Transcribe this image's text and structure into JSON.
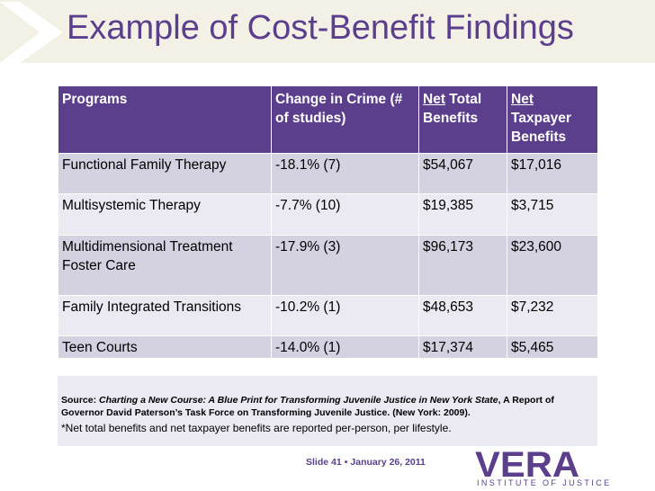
{
  "slide": {
    "title": "Example of Cost-Benefit Findings"
  },
  "table": {
    "headers": {
      "programs": "Programs",
      "change": "Change in Crime (# of studies)",
      "net_total_prefix": "Net",
      "net_total_rest": " Total Benefits",
      "net_taxpayer_prefix": "Net",
      "net_taxpayer_rest": " Taxpayer Benefits"
    },
    "rows": [
      {
        "program": "Functional Family Therapy",
        "change": "-18.1% (7)",
        "net_total": "$54,067",
        "net_taxpayer": "$17,016"
      },
      {
        "program": "Multisystemic Therapy",
        "change": "-7.7% (10)",
        "net_total": "$19,385",
        "net_taxpayer": "$3,715"
      },
      {
        "program": "Multidimensional Treatment Foster Care",
        "change": "-17.9% (3)",
        "net_total": "$96,173",
        "net_taxpayer": "$23,600"
      },
      {
        "program": "Family Integrated Transitions",
        "change": "-10.2% (1)",
        "net_total": "$48,653",
        "net_taxpayer": "$7,232"
      },
      {
        "program": "Teen Courts",
        "change": "-14.0% (1)",
        "net_total": "$17,374",
        "net_taxpayer": "$5,465"
      }
    ]
  },
  "source": {
    "label": "Source: ",
    "title": "Charting a New Course: A Blue Print for Transforming Juvenile Justice in New York State",
    "rest": ", A Report of Governor David Paterson’s Task Force on Transforming Juvenile Justice. (New York: 2009).",
    "note": "*Net total benefits and net taxpayer benefits are reported per-person, per lifestyle."
  },
  "footer": {
    "slide_label": "Slide 41",
    "separator": "•",
    "date": "January 26, 2011"
  },
  "logo": {
    "name": "VERA",
    "subtitle": "INSTITUTE OF JUSTICE"
  },
  "colors": {
    "brand_purple": "#5b3f8c",
    "header_bg": "#f3f1e6",
    "row_dark": "#d4d1e1",
    "row_light": "#ebe9f1"
  }
}
